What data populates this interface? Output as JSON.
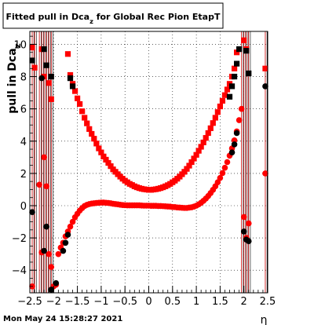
{
  "chart_data": {
    "type": "scatter",
    "title": "Fitted pull in Dca_z for Global Rec Pion EtapT",
    "xlabel": "η",
    "ylabel": "pull in Dca_z",
    "xlim": [
      -2.5,
      2.5
    ],
    "ylim": [
      -5.4,
      10.8
    ],
    "x_ticks": [
      "-2.5",
      "-2",
      "-1.5",
      "-1",
      "-0.5",
      "0",
      "0.5",
      "1",
      "1.5",
      "2",
      "2.5"
    ],
    "y_ticks": [
      "-4",
      "-2",
      "0",
      "2",
      "4",
      "6",
      "8",
      "10"
    ],
    "grid": true,
    "legend": "none",
    "series": [
      {
        "marker": "square",
        "color": "#ff0000",
        "points": [
          [
            -1.7,
            9.4
          ],
          [
            -1.65,
            8.1
          ],
          [
            -1.6,
            7.55
          ],
          [
            -1.55,
            7.1
          ],
          [
            -1.5,
            6.65
          ],
          [
            -1.45,
            6.3
          ],
          [
            -1.4,
            5.85
          ],
          [
            -1.35,
            5.45
          ],
          [
            -1.3,
            5.1
          ],
          [
            -1.25,
            4.75
          ],
          [
            -1.2,
            4.45
          ],
          [
            -1.15,
            4.15
          ],
          [
            -1.1,
            3.85
          ],
          [
            -1.05,
            3.55
          ],
          [
            -1.0,
            3.3
          ],
          [
            -0.95,
            3.05
          ],
          [
            -0.9,
            2.85
          ],
          [
            -0.85,
            2.65
          ],
          [
            -0.8,
            2.45
          ],
          [
            -0.75,
            2.25
          ],
          [
            -0.7,
            2.1
          ],
          [
            -0.65,
            1.95
          ],
          [
            -0.6,
            1.8
          ],
          [
            -0.55,
            1.67
          ],
          [
            -0.5,
            1.55
          ],
          [
            -0.45,
            1.45
          ],
          [
            -0.4,
            1.35
          ],
          [
            -0.35,
            1.28
          ],
          [
            -0.3,
            1.2
          ],
          [
            -0.25,
            1.14
          ],
          [
            -0.2,
            1.09
          ],
          [
            -0.15,
            1.05
          ],
          [
            -0.1,
            1.02
          ],
          [
            -0.05,
            1.0
          ],
          [
            0.0,
            0.98
          ],
          [
            0.05,
            0.98
          ],
          [
            0.1,
            1.0
          ],
          [
            0.15,
            1.02
          ],
          [
            0.2,
            1.05
          ],
          [
            0.25,
            1.09
          ],
          [
            0.3,
            1.14
          ],
          [
            0.35,
            1.2
          ],
          [
            0.4,
            1.27
          ],
          [
            0.45,
            1.35
          ],
          [
            0.5,
            1.45
          ],
          [
            0.55,
            1.55
          ],
          [
            0.6,
            1.67
          ],
          [
            0.65,
            1.8
          ],
          [
            0.7,
            1.95
          ],
          [
            0.75,
            2.1
          ],
          [
            0.8,
            2.28
          ],
          [
            0.85,
            2.48
          ],
          [
            0.9,
            2.7
          ],
          [
            0.95,
            2.92
          ],
          [
            1.0,
            3.15
          ],
          [
            1.05,
            3.4
          ],
          [
            1.1,
            3.65
          ],
          [
            1.15,
            3.92
          ],
          [
            1.2,
            4.2
          ],
          [
            1.25,
            4.5
          ],
          [
            1.3,
            4.8
          ],
          [
            1.35,
            5.12
          ],
          [
            1.4,
            5.45
          ],
          [
            1.45,
            5.8
          ],
          [
            1.5,
            6.15
          ],
          [
            1.55,
            6.5
          ],
          [
            1.6,
            6.85
          ],
          [
            1.65,
            7.2
          ],
          [
            1.7,
            7.55
          ],
          [
            1.75,
            8.0
          ],
          [
            1.8,
            8.5
          ],
          [
            1.85,
            9.5
          ],
          [
            -2.45,
            9.8
          ],
          [
            -2.4,
            8.55
          ],
          [
            -2.25,
            9.7
          ],
          [
            -2.2,
            8.0
          ],
          [
            -2.1,
            7.6
          ],
          [
            -2.05,
            6.6
          ],
          [
            2.0,
            10.25
          ],
          [
            2.05,
            9.7
          ],
          [
            2.45,
            8.5
          ]
        ]
      },
      {
        "marker": "square",
        "color": "#000000",
        "points": [
          [
            -2.45,
            9.0
          ],
          [
            -2.2,
            9.7
          ],
          [
            -2.15,
            8.7
          ],
          [
            -2.05,
            8.0
          ],
          [
            -1.65,
            7.9
          ],
          [
            -1.6,
            7.4
          ],
          [
            1.7,
            6.75
          ],
          [
            1.75,
            7.4
          ],
          [
            1.8,
            8.0
          ],
          [
            1.85,
            8.8
          ],
          [
            1.9,
            9.7
          ],
          [
            2.05,
            9.6
          ],
          [
            2.1,
            8.2
          ]
        ]
      },
      {
        "marker": "circle",
        "color": "#ff0000",
        "points": [
          [
            -2.45,
            -5.0
          ],
          [
            -2.3,
            1.3
          ],
          [
            -2.25,
            -2.9
          ],
          [
            -2.2,
            3.0
          ],
          [
            -2.15,
            1.2
          ],
          [
            -2.1,
            -3.0
          ],
          [
            -2.05,
            -3.8
          ],
          [
            -2.0,
            -5.0
          ],
          [
            -1.95,
            -4.9
          ],
          [
            -1.9,
            -3.0
          ],
          [
            -1.85,
            -2.6
          ],
          [
            -1.8,
            -2.3
          ],
          [
            -1.75,
            -1.9
          ],
          [
            -1.7,
            -1.6
          ],
          [
            -1.65,
            -1.3
          ],
          [
            -1.6,
            -1.0
          ],
          [
            -1.55,
            -0.72
          ],
          [
            -1.5,
            -0.5
          ],
          [
            -1.45,
            -0.3
          ],
          [
            -1.4,
            -0.15
          ],
          [
            -1.35,
            -0.02
          ],
          [
            -1.3,
            0.05
          ],
          [
            -1.25,
            0.1
          ],
          [
            -1.2,
            0.13
          ],
          [
            -1.15,
            0.15
          ],
          [
            -1.1,
            0.17
          ],
          [
            -1.05,
            0.18
          ],
          [
            -1.0,
            0.19
          ],
          [
            -0.95,
            0.19
          ],
          [
            -0.9,
            0.18
          ],
          [
            -0.85,
            0.17
          ],
          [
            -0.8,
            0.15
          ],
          [
            -0.75,
            0.12
          ],
          [
            -0.7,
            0.1
          ],
          [
            -0.65,
            0.08
          ],
          [
            -0.6,
            0.06
          ],
          [
            -0.55,
            0.04
          ],
          [
            -0.5,
            0.03
          ],
          [
            -0.45,
            0.02
          ],
          [
            -0.4,
            0.02
          ],
          [
            -0.35,
            0.02
          ],
          [
            -0.3,
            0.02
          ],
          [
            -0.25,
            0.02
          ],
          [
            -0.2,
            0.02
          ],
          [
            -0.15,
            0.01
          ],
          [
            -0.1,
            0.0
          ],
          [
            -0.05,
            0.0
          ],
          [
            0.0,
            0.0
          ],
          [
            0.05,
            -0.01
          ],
          [
            0.1,
            -0.01
          ],
          [
            0.15,
            -0.01
          ],
          [
            0.2,
            -0.02
          ],
          [
            0.25,
            -0.02
          ],
          [
            0.3,
            -0.03
          ],
          [
            0.35,
            -0.04
          ],
          [
            0.4,
            -0.05
          ],
          [
            0.45,
            -0.06
          ],
          [
            0.5,
            -0.08
          ],
          [
            0.55,
            -0.09
          ],
          [
            0.6,
            -0.11
          ],
          [
            0.65,
            -0.12
          ],
          [
            0.7,
            -0.13
          ],
          [
            0.75,
            -0.14
          ],
          [
            0.8,
            -0.14
          ],
          [
            0.85,
            -0.12
          ],
          [
            0.9,
            -0.1
          ],
          [
            0.95,
            -0.06
          ],
          [
            1.0,
            0.0
          ],
          [
            1.05,
            0.08
          ],
          [
            1.1,
            0.18
          ],
          [
            1.15,
            0.3
          ],
          [
            1.2,
            0.44
          ],
          [
            1.25,
            0.6
          ],
          [
            1.3,
            0.78
          ],
          [
            1.35,
            0.98
          ],
          [
            1.4,
            1.2
          ],
          [
            1.45,
            1.45
          ],
          [
            1.5,
            1.72
          ],
          [
            1.55,
            2.02
          ],
          [
            1.6,
            2.35
          ],
          [
            1.65,
            2.7
          ],
          [
            1.7,
            3.1
          ],
          [
            1.75,
            3.55
          ],
          [
            1.8,
            4.05
          ],
          [
            1.85,
            4.6
          ],
          [
            1.9,
            5.3
          ],
          [
            1.95,
            6.0
          ],
          [
            2.0,
            -0.7
          ],
          [
            2.05,
            -2.0
          ],
          [
            2.1,
            -1.1
          ],
          [
            2.45,
            2.0
          ]
        ]
      },
      {
        "marker": "circle",
        "color": "#000000",
        "points": [
          [
            -2.45,
            -0.4
          ],
          [
            -2.25,
            7.9
          ],
          [
            -2.2,
            -2.8
          ],
          [
            -2.15,
            -1.3
          ],
          [
            -2.05,
            -5.2
          ],
          [
            -1.95,
            -4.8
          ],
          [
            -1.8,
            -2.8
          ],
          [
            -1.75,
            -2.3
          ],
          [
            -1.7,
            -1.8
          ],
          [
            1.75,
            3.3
          ],
          [
            1.8,
            3.8
          ],
          [
            1.85,
            4.5
          ],
          [
            2.0,
            -1.6
          ],
          [
            2.05,
            -2.1
          ],
          [
            2.1,
            -2.2
          ],
          [
            2.45,
            7.4
          ]
        ]
      }
    ],
    "errorbar_x": [
      -2.45,
      -2.4,
      -2.3,
      -2.25,
      -2.2,
      -2.15,
      -2.1,
      -2.05,
      1.95,
      2.0,
      2.05,
      2.1,
      2.45
    ],
    "footer": "Mon May 24 15:28:27 2021"
  }
}
